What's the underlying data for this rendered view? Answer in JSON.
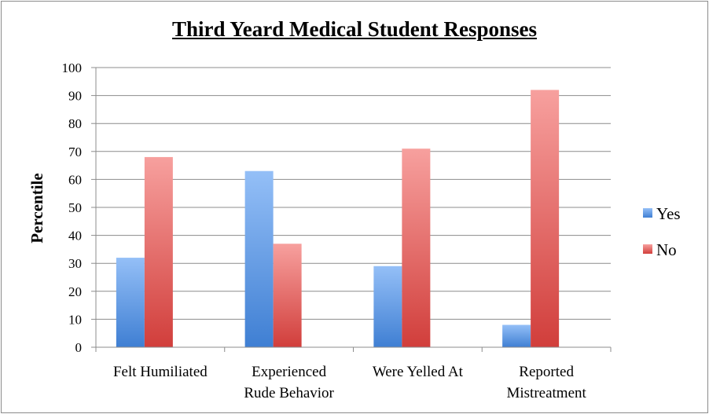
{
  "chart_data": {
    "type": "bar",
    "title": "Third Yeard Medical Student Responses",
    "ylabel": "Percentile",
    "xlabel": "",
    "ylim": [
      0,
      100
    ],
    "yticks": [
      0,
      10,
      20,
      30,
      40,
      50,
      60,
      70,
      80,
      90,
      100
    ],
    "grid": true,
    "legend_position": "right",
    "categories": [
      [
        "Felt Humiliated"
      ],
      [
        "Experienced",
        "Rude Behavior"
      ],
      [
        "Were Yelled At"
      ],
      [
        "Reported",
        "Mistreatment"
      ]
    ],
    "series": [
      {
        "name": "Yes",
        "values": [
          32,
          63,
          29,
          8
        ],
        "color_top": "#94bff7",
        "color_bottom": "#3f7fd3"
      },
      {
        "name": "No",
        "values": [
          68,
          37,
          71,
          92
        ],
        "color_top": "#f7a09e",
        "color_bottom": "#d13e3b"
      }
    ]
  }
}
